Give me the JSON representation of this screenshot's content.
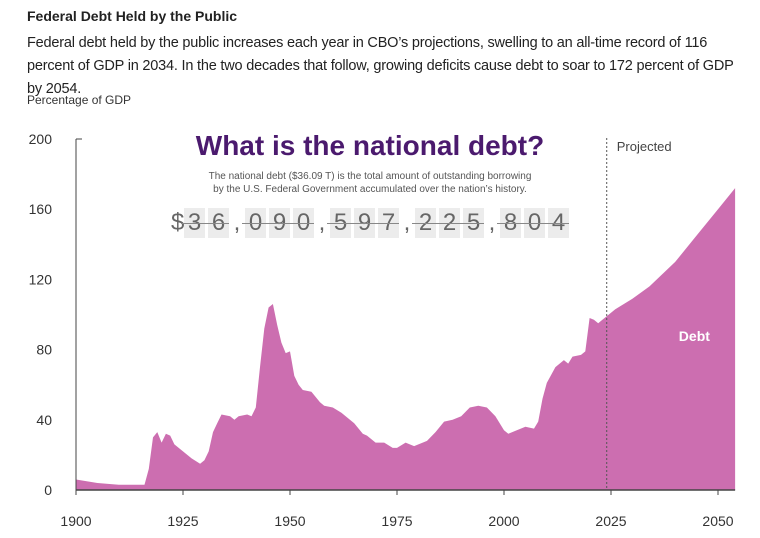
{
  "header": {
    "title": "Federal Debt Held by the Public",
    "description": "Federal debt held by the public increases each year in CBO’s projections, swelling to an all-time record of 116 percent of GDP in 2034. In the two decades that follow, growing deficits cause debt to soar to 172 percent of GDP by 2054."
  },
  "overlay": {
    "title": "What is the national debt?",
    "subtitle_line1": "The national debt ($36.09 T) is the total amount of outstanding borrowing",
    "subtitle_line2": "by the U.S. Federal Government accumulated over the nation’s history.",
    "counter": "$36,090,597,225,804"
  },
  "chart_data": {
    "type": "area",
    "ylabel": "Percentage of GDP",
    "xlim": [
      1900,
      2054
    ],
    "ylim": [
      0,
      200
    ],
    "xticks": [
      1900,
      1925,
      1950,
      1975,
      2000,
      2025,
      2050
    ],
    "yticks": [
      0,
      40,
      80,
      120,
      160,
      200
    ],
    "projected_label": "Projected",
    "projected_start": 2024,
    "series_label": "Debt",
    "color": "#cc6eb0",
    "points": [
      [
        1900,
        6
      ],
      [
        1905,
        4
      ],
      [
        1910,
        3
      ],
      [
        1916,
        3
      ],
      [
        1917,
        12
      ],
      [
        1918,
        30
      ],
      [
        1919,
        33
      ],
      [
        1920,
        27
      ],
      [
        1921,
        32
      ],
      [
        1922,
        31
      ],
      [
        1923,
        26
      ],
      [
        1925,
        22
      ],
      [
        1927,
        18
      ],
      [
        1929,
        15
      ],
      [
        1930,
        17
      ],
      [
        1931,
        22
      ],
      [
        1932,
        33
      ],
      [
        1933,
        38
      ],
      [
        1934,
        43
      ],
      [
        1936,
        42
      ],
      [
        1937,
        40
      ],
      [
        1938,
        42
      ],
      [
        1940,
        43
      ],
      [
        1941,
        42
      ],
      [
        1942,
        47
      ],
      [
        1943,
        70
      ],
      [
        1944,
        92
      ],
      [
        1945,
        104
      ],
      [
        1946,
        106
      ],
      [
        1947,
        94
      ],
      [
        1948,
        84
      ],
      [
        1949,
        78
      ],
      [
        1950,
        79
      ],
      [
        1951,
        65
      ],
      [
        1952,
        60
      ],
      [
        1953,
        57
      ],
      [
        1955,
        56
      ],
      [
        1957,
        50
      ],
      [
        1958,
        48
      ],
      [
        1960,
        47
      ],
      [
        1962,
        44
      ],
      [
        1965,
        38
      ],
      [
        1967,
        32
      ],
      [
        1968,
        31
      ],
      [
        1970,
        27
      ],
      [
        1972,
        27
      ],
      [
        1974,
        24
      ],
      [
        1975,
        24
      ],
      [
        1977,
        27
      ],
      [
        1979,
        25
      ],
      [
        1980,
        26
      ],
      [
        1982,
        28
      ],
      [
        1984,
        33
      ],
      [
        1986,
        39
      ],
      [
        1988,
        40
      ],
      [
        1990,
        42
      ],
      [
        1992,
        47
      ],
      [
        1994,
        48
      ],
      [
        1996,
        47
      ],
      [
        1998,
        42
      ],
      [
        2000,
        34
      ],
      [
        2001,
        32
      ],
      [
        2003,
        34
      ],
      [
        2005,
        36
      ],
      [
        2007,
        35
      ],
      [
        2008,
        39
      ],
      [
        2009,
        52
      ],
      [
        2010,
        61
      ],
      [
        2012,
        70
      ],
      [
        2014,
        74
      ],
      [
        2015,
        72
      ],
      [
        2016,
        76
      ],
      [
        2018,
        77
      ],
      [
        2019,
        79
      ],
      [
        2020,
        98
      ],
      [
        2021,
        97
      ],
      [
        2022,
        95
      ],
      [
        2023,
        97
      ],
      [
        2024,
        99
      ],
      [
        2026,
        103
      ],
      [
        2030,
        109
      ],
      [
        2034,
        116
      ],
      [
        2040,
        130
      ],
      [
        2045,
        145
      ],
      [
        2050,
        160
      ],
      [
        2054,
        172
      ]
    ]
  }
}
